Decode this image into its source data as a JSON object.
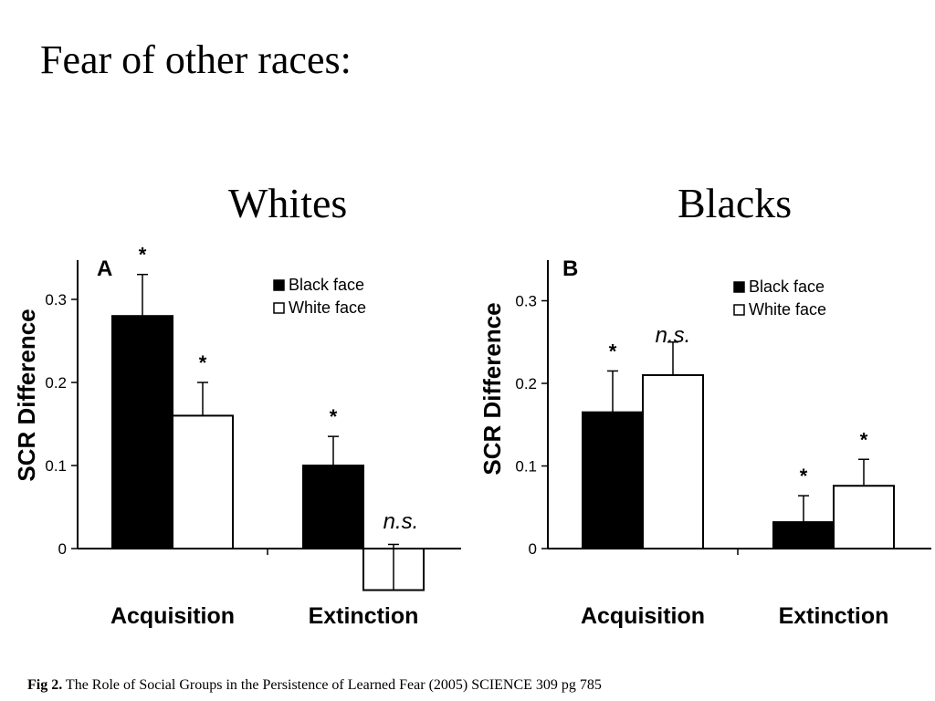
{
  "slide": {
    "title": "Fear of other races:",
    "caption_label": "Fig 2.",
    "caption_text": " The Role of Social Groups in the Persistence of Learned Fear (2005) SCIENCE 309 pg 785"
  },
  "panels": [
    {
      "heading": "Whites"
    },
    {
      "heading": "Blacks"
    }
  ],
  "chart_data": [
    {
      "type": "bar",
      "panel_label": "A",
      "ylabel": "SCR Difference",
      "ylim": [
        0,
        0.35
      ],
      "yticks": [
        "0",
        "0.1",
        "0.2",
        "0.3"
      ],
      "categories": [
        "Acquisition",
        "Extinction"
      ],
      "legend_position": "top-right",
      "series": [
        {
          "name": "Black face",
          "color": "#000000",
          "values": [
            0.28,
            0.1
          ],
          "errors": [
            0.05,
            0.035
          ]
        },
        {
          "name": "White face",
          "color": "#ffffff",
          "values": [
            0.16,
            -0.05
          ],
          "errors": [
            0.04,
            0.055
          ]
        }
      ],
      "annotations": [
        [
          "*",
          "*"
        ],
        [
          "*",
          "n.s."
        ]
      ]
    },
    {
      "type": "bar",
      "panel_label": "B",
      "ylabel": "SCR Difference",
      "ylim": [
        0,
        0.35
      ],
      "yticks": [
        "0",
        "0.1",
        "0.2",
        "0.3"
      ],
      "categories": [
        "Acquisition",
        "Extinction"
      ],
      "legend_position": "top-right",
      "series": [
        {
          "name": "Black face",
          "color": "#000000",
          "values": [
            0.165,
            0.032
          ],
          "errors": [
            0.05,
            0.032
          ]
        },
        {
          "name": "White face",
          "color": "#ffffff",
          "values": [
            0.21,
            0.076
          ],
          "errors": [
            0.04,
            0.032
          ]
        }
      ],
      "annotations": [
        [
          "*",
          "n.s."
        ],
        [
          "*",
          "*"
        ]
      ]
    }
  ]
}
